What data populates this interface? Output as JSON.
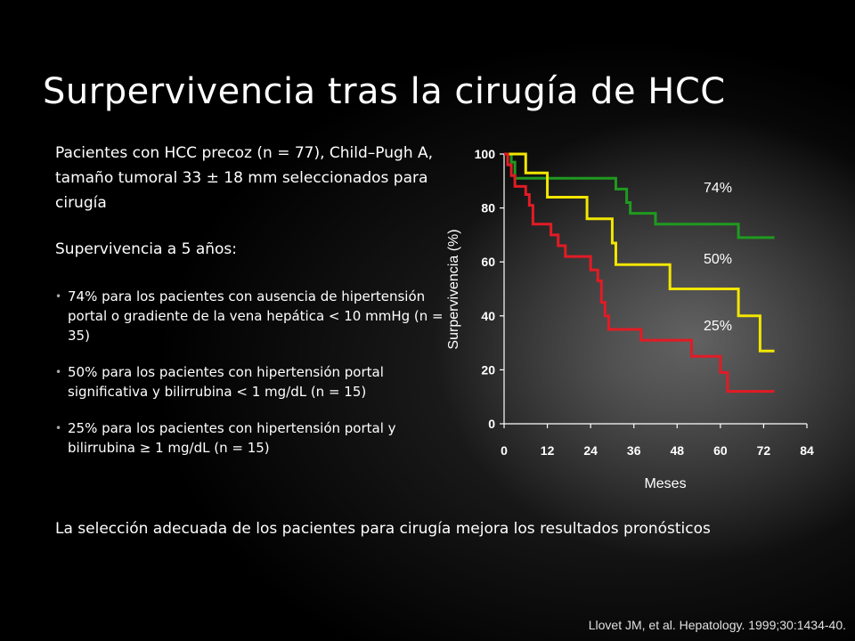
{
  "slide": {
    "title": "Surpervivencia tras la cirugía de HCC",
    "intro": "Pacientes con HCC precoz (n = 77), Child–Pugh  A, tamaño tumoral 33 ± 18 mm seleccionados para cirugía",
    "survival_heading": "Supervivencia a 5 años:",
    "bullets": [
      "74% para los pacientes con ausencia de hipertensión portal o gradiente de la vena hepática < 10 mmHg (n = 35)",
      "50% para los pacientes con hipertensión portal significativa y bilirrubina < 1 mg/dL (n = 15)",
      "25% para los pacientes con hipertensión portal y bilirrubina  ≥ 1 mg/dL (n = 15)"
    ],
    "conclusion": "La selección adecuada de los pacientes para cirugía mejora los resultados pronósticos",
    "citation": "Llovet JM, et al. Hepatology. 1999;30:1434-40."
  },
  "chart_data": {
    "type": "line",
    "step": true,
    "xlabel": "Meses",
    "ylabel": "Surpervivencia (%)",
    "xlim": [
      0,
      84
    ],
    "ylim": [
      0,
      100
    ],
    "xticks": [
      0,
      12,
      24,
      36,
      48,
      60,
      72,
      84
    ],
    "yticks": [
      0,
      20,
      40,
      60,
      80,
      100
    ],
    "series": [
      {
        "label": "74%",
        "color": "#1f9a1f",
        "points": [
          [
            0,
            100
          ],
          [
            2,
            100
          ],
          [
            2,
            97
          ],
          [
            3,
            97
          ],
          [
            3,
            91
          ],
          [
            31,
            91
          ],
          [
            31,
            87
          ],
          [
            34,
            87
          ],
          [
            34,
            82
          ],
          [
            35,
            82
          ],
          [
            35,
            78
          ],
          [
            42,
            78
          ],
          [
            42,
            74
          ],
          [
            65,
            74
          ],
          [
            65,
            69
          ],
          [
            75,
            69
          ]
        ]
      },
      {
        "label": "50%",
        "color": "#f2e600",
        "points": [
          [
            0,
            100
          ],
          [
            6,
            100
          ],
          [
            6,
            93
          ],
          [
            12,
            93
          ],
          [
            12,
            84
          ],
          [
            23,
            84
          ],
          [
            23,
            76
          ],
          [
            30,
            76
          ],
          [
            30,
            67
          ],
          [
            31,
            67
          ],
          [
            31,
            59
          ],
          [
            46,
            59
          ],
          [
            46,
            50
          ],
          [
            65,
            50
          ],
          [
            65,
            40
          ],
          [
            71,
            40
          ],
          [
            71,
            27
          ],
          [
            75,
            27
          ]
        ]
      },
      {
        "label": "25%",
        "color": "#e21b25",
        "points": [
          [
            0,
            100
          ],
          [
            1,
            100
          ],
          [
            1,
            96
          ],
          [
            2,
            96
          ],
          [
            2,
            92
          ],
          [
            3,
            92
          ],
          [
            3,
            88
          ],
          [
            6,
            88
          ],
          [
            6,
            85
          ],
          [
            7,
            85
          ],
          [
            7,
            81
          ],
          [
            8,
            81
          ],
          [
            8,
            74
          ],
          [
            13,
            74
          ],
          [
            13,
            70
          ],
          [
            15,
            70
          ],
          [
            15,
            66
          ],
          [
            17,
            66
          ],
          [
            17,
            62
          ],
          [
            24,
            62
          ],
          [
            24,
            57
          ],
          [
            26,
            57
          ],
          [
            26,
            53
          ],
          [
            27,
            53
          ],
          [
            27,
            45
          ],
          [
            28,
            45
          ],
          [
            28,
            40
          ],
          [
            29,
            40
          ],
          [
            29,
            35
          ],
          [
            38,
            35
          ],
          [
            38,
            31
          ],
          [
            52,
            31
          ],
          [
            52,
            25
          ],
          [
            60,
            25
          ],
          [
            60,
            19
          ],
          [
            62,
            19
          ],
          [
            62,
            12
          ],
          [
            75,
            12
          ]
        ]
      }
    ]
  }
}
